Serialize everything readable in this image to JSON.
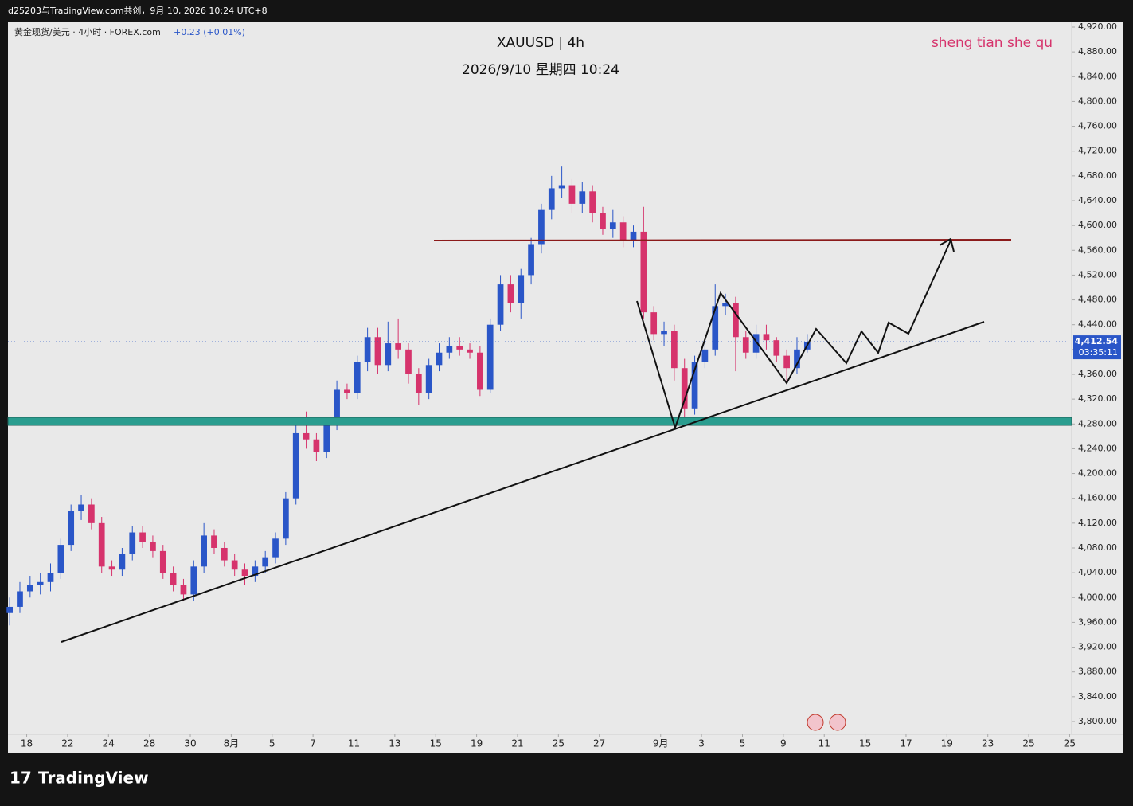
{
  "header": {
    "text": "d25203与TradingView.com共创，9月 10, 2026 10:24 UTC+8"
  },
  "footer": {
    "logo": "TradingView"
  },
  "chart_data": {
    "type": "candlestick",
    "title": "XAUUSD | 4h",
    "subtitle": "2026/9/10 星期四 10:24",
    "annotation": "sheng tian she qu",
    "legend": {
      "symbol": "黄金现货/美元 · 4小时 · FOREX.com",
      "change": "+0.23 (+0.01%)"
    },
    "last_price": {
      "value": 4412.54,
      "label": "4,412.54"
    },
    "countdown": "03:35:11",
    "up_color": "#2a56c8",
    "down_color": "#d6336c",
    "xlim": [
      -0.5,
      311.6
    ],
    "ylim": [
      3748.6,
      4927.7
    ],
    "xticks": [
      {
        "value": 5,
        "label": "18"
      },
      {
        "value": 17,
        "label": "22"
      },
      {
        "value": 29,
        "label": "24"
      },
      {
        "value": 41,
        "label": "28"
      },
      {
        "value": 53,
        "label": "30"
      },
      {
        "value": 65,
        "label": "8月"
      },
      {
        "value": 77,
        "label": "5"
      },
      {
        "value": 89,
        "label": "7"
      },
      {
        "value": 101,
        "label": "11"
      },
      {
        "value": 113,
        "label": "13"
      },
      {
        "value": 125,
        "label": "15"
      },
      {
        "value": 137,
        "label": "19"
      },
      {
        "value": 149,
        "label": "21"
      },
      {
        "value": 161,
        "label": "25"
      },
      {
        "value": 173,
        "label": "27"
      },
      {
        "value": 191,
        "label": "9月"
      },
      {
        "value": 203,
        "label": "3"
      },
      {
        "value": 215,
        "label": "5"
      },
      {
        "value": 227,
        "label": "9"
      },
      {
        "value": 239,
        "label": "11"
      },
      {
        "value": 251,
        "label": "15"
      },
      {
        "value": 263,
        "label": "17"
      },
      {
        "value": 275,
        "label": "19"
      },
      {
        "value": 287,
        "label": "23"
      },
      {
        "value": 299,
        "label": "25"
      },
      {
        "value": 311,
        "label": "25"
      }
    ],
    "yticks": [
      {
        "value": 3800,
        "label": "3,800.00"
      },
      {
        "value": 3840,
        "label": "3,840.00"
      },
      {
        "value": 3880,
        "label": "3,880.00"
      },
      {
        "value": 3920,
        "label": "3,920.00"
      },
      {
        "value": 3960,
        "label": "3,960.00"
      },
      {
        "value": 4000,
        "label": "4,000.00"
      },
      {
        "value": 4040,
        "label": "4,040.00"
      },
      {
        "value": 4080,
        "label": "4,080.00"
      },
      {
        "value": 4120,
        "label": "4,120.00"
      },
      {
        "value": 4160,
        "label": "4,160.00"
      },
      {
        "value": 4200,
        "label": "4,200.00"
      },
      {
        "value": 4240,
        "label": "4,240.00"
      },
      {
        "value": 4280,
        "label": "4,280.00"
      },
      {
        "value": 4320,
        "label": "4,320.00"
      },
      {
        "value": 4360,
        "label": "4,360.00"
      },
      {
        "value": 4400,
        "label": "4,400.00"
      },
      {
        "value": 4440,
        "label": "4,440.00"
      },
      {
        "value": 4480,
        "label": "4,480.00"
      },
      {
        "value": 4520,
        "label": "4,520.00"
      },
      {
        "value": 4560,
        "label": "4,560.00"
      },
      {
        "value": 4600,
        "label": "4,600.00"
      },
      {
        "value": 4640,
        "label": "4,640.00"
      },
      {
        "value": 4680,
        "label": "4,680.00"
      },
      {
        "value": 4720,
        "label": "4,720.00"
      },
      {
        "value": 4760,
        "label": "4,760.00"
      },
      {
        "value": 4800,
        "label": "4,800.00"
      },
      {
        "value": 4840,
        "label": "4,840.00"
      },
      {
        "value": 4880,
        "label": "4,880.00"
      },
      {
        "value": 4920,
        "label": "4,920.00"
      }
    ],
    "x": [
      0,
      3,
      6,
      9,
      12,
      15,
      18,
      21,
      24,
      27,
      30,
      33,
      36,
      39,
      42,
      45,
      48,
      51,
      54,
      57,
      60,
      63,
      66,
      69,
      72,
      75,
      78,
      81,
      84,
      87,
      90,
      93,
      96,
      99,
      102,
      105,
      108,
      111,
      114,
      117,
      120,
      123,
      126,
      129,
      132,
      135,
      138,
      141,
      144,
      147,
      150,
      153,
      156,
      159,
      162,
      165,
      168,
      171,
      174,
      177,
      180,
      183,
      186,
      189,
      192,
      195,
      198,
      201,
      204,
      207,
      210,
      213,
      216,
      219,
      222,
      225,
      228,
      231,
      234
    ],
    "open": [
      3975,
      3985,
      4010,
      4020,
      4025,
      4040,
      4085,
      4140,
      4150,
      4120,
      4050,
      4045,
      4070,
      4105,
      4090,
      4075,
      4040,
      4020,
      4005,
      4050,
      4100,
      4080,
      4060,
      4045,
      4035,
      4050,
      4065,
      4095,
      4160,
      4265,
      4255,
      4235,
      4280,
      4335,
      4330,
      4380,
      4420,
      4375,
      4410,
      4400,
      4360,
      4330,
      4375,
      4395,
      4405,
      4400,
      4395,
      4335,
      4440,
      4505,
      4475,
      4520,
      4570,
      4625,
      4660,
      4665,
      4635,
      4655,
      4620,
      4595,
      4605,
      4575,
      4590,
      4460,
      4425,
      4430,
      4370,
      4305,
      4380,
      4400,
      4470,
      4475,
      4420,
      4395,
      4425,
      4415,
      4390,
      4370,
      4400
    ],
    "high": [
      4000,
      4025,
      4035,
      4040,
      4055,
      4095,
      4150,
      4165,
      4160,
      4130,
      4060,
      4080,
      4115,
      4115,
      4100,
      4085,
      4050,
      4030,
      4060,
      4120,
      4110,
      4090,
      4070,
      4055,
      4060,
      4075,
      4105,
      4170,
      4280,
      4300,
      4265,
      4290,
      4350,
      4345,
      4390,
      4435,
      4435,
      4445,
      4450,
      4410,
      4370,
      4385,
      4410,
      4420,
      4420,
      4410,
      4405,
      4450,
      4520,
      4520,
      4530,
      4580,
      4635,
      4680,
      4695,
      4675,
      4670,
      4665,
      4630,
      4625,
      4615,
      4600,
      4630,
      4470,
      4445,
      4440,
      4385,
      4390,
      4410,
      4505,
      4490,
      4485,
      4430,
      4440,
      4440,
      4420,
      4400,
      4420,
      4425
    ],
    "low": [
      3955,
      3975,
      4000,
      4005,
      4010,
      4030,
      4075,
      4125,
      4110,
      4040,
      4035,
      4035,
      4060,
      4080,
      4065,
      4030,
      4010,
      3995,
      3995,
      4040,
      4070,
      4050,
      4035,
      4020,
      4025,
      4040,
      4055,
      4085,
      4150,
      4240,
      4220,
      4225,
      4270,
      4320,
      4320,
      4365,
      4360,
      4365,
      4385,
      4345,
      4310,
      4320,
      4365,
      4385,
      4390,
      4385,
      4325,
      4330,
      4430,
      4460,
      4450,
      4505,
      4555,
      4610,
      4645,
      4620,
      4620,
      4605,
      4585,
      4580,
      4565,
      4565,
      4450,
      4415,
      4405,
      4350,
      4290,
      4295,
      4370,
      4390,
      4455,
      4365,
      4385,
      4385,
      4400,
      4380,
      4345,
      4360,
      4395
    ],
    "close": [
      3985,
      4010,
      4020,
      4025,
      4040,
      4085,
      4140,
      4150,
      4120,
      4050,
      4045,
      4070,
      4105,
      4090,
      4075,
      4040,
      4020,
      4005,
      4050,
      4100,
      4080,
      4060,
      4045,
      4035,
      4050,
      4065,
      4095,
      4160,
      4265,
      4255,
      4235,
      4280,
      4335,
      4330,
      4380,
      4420,
      4375,
      4410,
      4400,
      4360,
      4330,
      4375,
      4395,
      4405,
      4400,
      4395,
      4335,
      4440,
      4505,
      4475,
      4520,
      4570,
      4625,
      4660,
      4665,
      4635,
      4655,
      4620,
      4595,
      4605,
      4575,
      4590,
      4460,
      4425,
      4430,
      4370,
      4305,
      4380,
      4400,
      4470,
      4475,
      4420,
      4395,
      4425,
      4415,
      4390,
      4370,
      4400,
      4412.54
    ]
  }
}
